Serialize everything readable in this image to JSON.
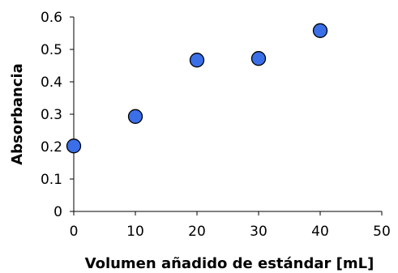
{
  "chart_data": {
    "type": "scatter",
    "title": "",
    "xlabel": "Volumen añadido de estándar [mL]",
    "ylabel": "Absorbancia",
    "xlim": [
      0,
      50
    ],
    "ylim": [
      0,
      0.6
    ],
    "x_ticks": [
      "0",
      "10",
      "20",
      "30",
      "40",
      "50"
    ],
    "y_ticks": [
      "0",
      "0.1",
      "0.2",
      "0.3",
      "0.4",
      "0.5",
      "0.6"
    ],
    "grid": false,
    "legend": "none",
    "marker_color": "#3b6fe8",
    "marker_edge_color": "#000000",
    "series": [
      {
        "x": [
          0,
          10,
          20,
          30,
          40
        ],
        "y": [
          0.202,
          0.293,
          0.467,
          0.472,
          0.558
        ]
      }
    ]
  }
}
